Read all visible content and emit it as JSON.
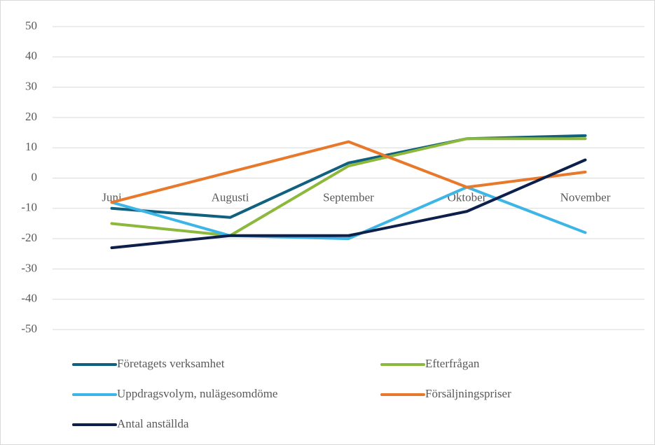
{
  "chart_data": {
    "type": "line",
    "categories": [
      "Juni",
      "Augusti",
      "September",
      "Oktober",
      "November"
    ],
    "series": [
      {
        "name": "Företagets verksamhet",
        "color": "#10607f",
        "values": [
          -10,
          -13,
          5,
          13,
          14
        ]
      },
      {
        "name": "Efterfrågan",
        "color": "#8cb83c",
        "values": [
          -15,
          -19,
          4,
          13,
          13
        ]
      },
      {
        "name": "Uppdragsvolym, nulägesomdöme",
        "color": "#3db5e6",
        "values": [
          -8,
          -19,
          -20,
          -3,
          -18
        ]
      },
      {
        "name": "Försäljningspriser",
        "color": "#e8792b",
        "values": [
          -8,
          2,
          12,
          -3,
          2
        ]
      },
      {
        "name": "Antal anställda",
        "color": "#0d1f4b",
        "values": [
          -23,
          -19,
          -19,
          -11,
          6
        ]
      }
    ],
    "ylim": [
      -50,
      50
    ],
    "yticks": [
      -50,
      -40,
      -30,
      -20,
      -10,
      0,
      10,
      20,
      30,
      40,
      50
    ],
    "grid": true
  }
}
